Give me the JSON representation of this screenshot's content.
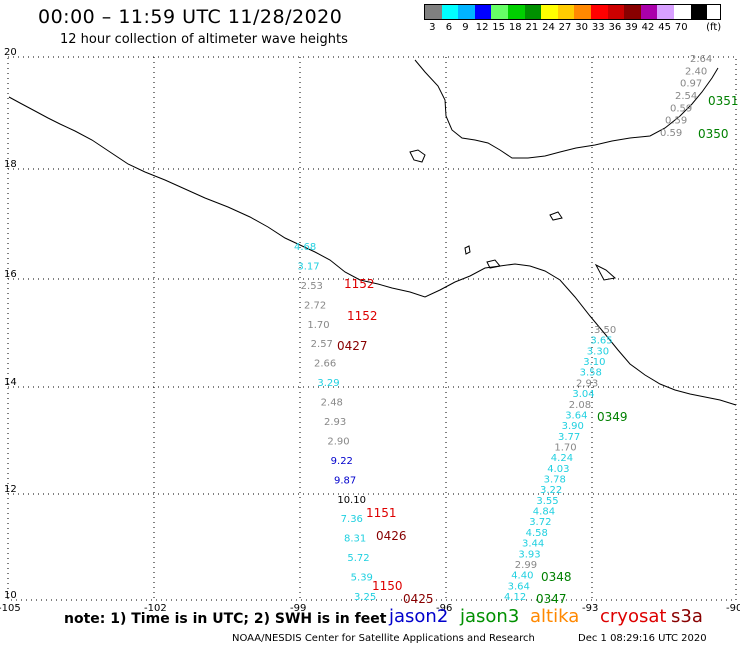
{
  "title": "00:00 – 11:59 UTC 11/28/2020",
  "subtitle": "12 hour collection of altimeter wave heights",
  "legend": {
    "unit": "(ft)",
    "items": [
      {
        "label": "3",
        "color": "#808080"
      },
      {
        "label": "6",
        "color": "#00ffff"
      },
      {
        "label": "9",
        "color": "#00b4ff"
      },
      {
        "label": "12",
        "color": "#0000ff"
      },
      {
        "label": "15",
        "color": "#66ff66"
      },
      {
        "label": "18",
        "color": "#00d000"
      },
      {
        "label": "21",
        "color": "#009000"
      },
      {
        "label": "24",
        "color": "#ffff00"
      },
      {
        "label": "27",
        "color": "#ffcc00"
      },
      {
        "label": "30",
        "color": "#ff8800"
      },
      {
        "label": "33",
        "color": "#ff0000"
      },
      {
        "label": "36",
        "color": "#cc0000"
      },
      {
        "label": "39",
        "color": "#880000"
      },
      {
        "label": "42",
        "color": "#aa00aa"
      },
      {
        "label": "45",
        "color": "#d8a0ff"
      },
      {
        "label": "70",
        "color": "#ffffff"
      },
      {
        "label": "",
        "color": "#000000"
      }
    ]
  },
  "axes": {
    "lat_labels": [
      "20",
      "18",
      "16",
      "14",
      "12",
      "10"
    ],
    "lon_labels": [
      "-105",
      "-102",
      "-99",
      "-96",
      "-93",
      "-90"
    ]
  },
  "tracks": [
    {
      "id": "tk1",
      "labels": [
        {
          "t": "2.64",
          "c": "#888888"
        },
        {
          "t": "2.40",
          "c": "#888888"
        },
        {
          "t": "0.97",
          "c": "#888888"
        },
        {
          "t": "2.54",
          "c": "#888888"
        },
        {
          "t": "0.59",
          "c": "#888888"
        },
        {
          "t": "0.59",
          "c": "#888888"
        },
        {
          "t": "0.59",
          "c": "#888888"
        }
      ]
    },
    {
      "id": "tk2",
      "labels": [
        {
          "t": "4.68",
          "c": "#20d0e0"
        },
        {
          "t": "3.17",
          "c": "#20d0e0"
        },
        {
          "t": "2.53",
          "c": "#888888"
        },
        {
          "t": "2.72",
          "c": "#888888"
        },
        {
          "t": "1.70",
          "c": "#888888"
        },
        {
          "t": "2.57",
          "c": "#888888"
        },
        {
          "t": "2.66",
          "c": "#888888"
        },
        {
          "t": "3.29",
          "c": "#20d0e0"
        },
        {
          "t": "2.48",
          "c": "#888888"
        },
        {
          "t": "2.93",
          "c": "#888888"
        },
        {
          "t": "2.90",
          "c": "#888888"
        },
        {
          "t": "9.22",
          "c": "#0000cc"
        },
        {
          "t": "9.87",
          "c": "#0000cc"
        },
        {
          "t": "10.10",
          "c": "#000000"
        },
        {
          "t": "7.36",
          "c": "#20d0e0"
        },
        {
          "t": "8.31",
          "c": "#20d0e0"
        },
        {
          "t": "5.72",
          "c": "#20d0e0"
        },
        {
          "t": "5.39",
          "c": "#20d0e0"
        },
        {
          "t": "3.25",
          "c": "#20d0e0"
        }
      ]
    },
    {
      "id": "tk3",
      "labels": [
        {
          "t": "3.50",
          "c": "#888888"
        },
        {
          "t": "3.65",
          "c": "#20d0e0"
        },
        {
          "t": "3.30",
          "c": "#20d0e0"
        },
        {
          "t": "3.10",
          "c": "#20d0e0"
        },
        {
          "t": "3.58",
          "c": "#20d0e0"
        },
        {
          "t": "2.93",
          "c": "#888888"
        },
        {
          "t": "3.04",
          "c": "#20d0e0"
        },
        {
          "t": "2.08",
          "c": "#888888"
        },
        {
          "t": "3.64",
          "c": "#20d0e0"
        },
        {
          "t": "3.90",
          "c": "#20d0e0"
        },
        {
          "t": "3.77",
          "c": "#20d0e0"
        },
        {
          "t": "1.70",
          "c": "#888888"
        },
        {
          "t": "4.24",
          "c": "#20d0e0"
        },
        {
          "t": "4.03",
          "c": "#20d0e0"
        },
        {
          "t": "3.78",
          "c": "#20d0e0"
        },
        {
          "t": "3.22",
          "c": "#20d0e0"
        },
        {
          "t": "3.55",
          "c": "#20d0e0"
        },
        {
          "t": "4.84",
          "c": "#20d0e0"
        },
        {
          "t": "3.72",
          "c": "#20d0e0"
        },
        {
          "t": "4.58",
          "c": "#20d0e0"
        },
        {
          "t": "3.44",
          "c": "#20d0e0"
        },
        {
          "t": "3.93",
          "c": "#20d0e0"
        },
        {
          "t": "2.99",
          "c": "#888888"
        },
        {
          "t": "4.40",
          "c": "#20d0e0"
        },
        {
          "t": "3.64",
          "c": "#20d0e0"
        },
        {
          "t": "4.12",
          "c": "#20d0e0"
        }
      ]
    }
  ],
  "time_tags": [
    {
      "t": "0351",
      "c": "#008000"
    },
    {
      "t": "0350",
      "c": "#008000"
    },
    {
      "t": "1152",
      "c": "#dd0000"
    },
    {
      "t": "1152",
      "c": "#dd0000"
    },
    {
      "t": "0427",
      "c": "#880000"
    },
    {
      "t": "0349",
      "c": "#008000"
    },
    {
      "t": "1151",
      "c": "#dd0000"
    },
    {
      "t": "0426",
      "c": "#880000"
    },
    {
      "t": "0348",
      "c": "#008000"
    },
    {
      "t": "1150",
      "c": "#dd0000"
    },
    {
      "t": "0425",
      "c": "#880000"
    },
    {
      "t": "0347",
      "c": "#008000"
    }
  ],
  "note": "note:  1) Time is in UTC; 2) SWH is in feet",
  "satellites": [
    {
      "name": "jason2",
      "color": "#0000cc"
    },
    {
      "name": "jason3",
      "color": "#009000"
    },
    {
      "name": "altika",
      "color": "#ff8800"
    },
    {
      "name": "cryosat",
      "color": "#dd0000"
    },
    {
      "name": "s3a",
      "color": "#880000"
    }
  ],
  "credit": "NOAA/NESDIS Center for Satellite Applications and Research",
  "credit_date": "Dec  1 08:29:16 UTC 2020"
}
